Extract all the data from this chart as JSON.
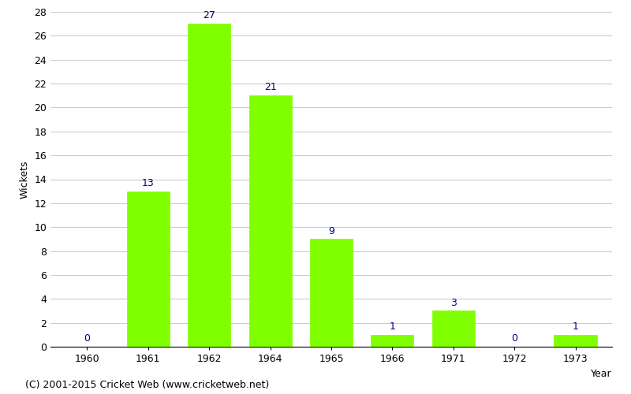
{
  "categories": [
    "1960",
    "1961",
    "1962",
    "1964",
    "1965",
    "1966",
    "1971",
    "1972",
    "1973"
  ],
  "values": [
    0,
    13,
    27,
    21,
    9,
    1,
    3,
    0,
    1
  ],
  "bar_color": "#7FFF00",
  "bar_edge_color": "#7FFF00",
  "label_color": "#00008B",
  "xlabel": "Year",
  "ylabel": "Wickets",
  "ylim": [
    0,
    28
  ],
  "yticks": [
    0,
    2,
    4,
    6,
    8,
    10,
    12,
    14,
    16,
    18,
    20,
    22,
    24,
    26,
    28
  ],
  "label_fontsize": 9,
  "axis_label_fontsize": 9,
  "tick_fontsize": 9,
  "footer_text": "(C) 2001-2015 Cricket Web (www.cricketweb.net)",
  "footer_fontsize": 9,
  "background_color": "#ffffff",
  "grid_color": "#cccccc",
  "bar_width": 0.7
}
